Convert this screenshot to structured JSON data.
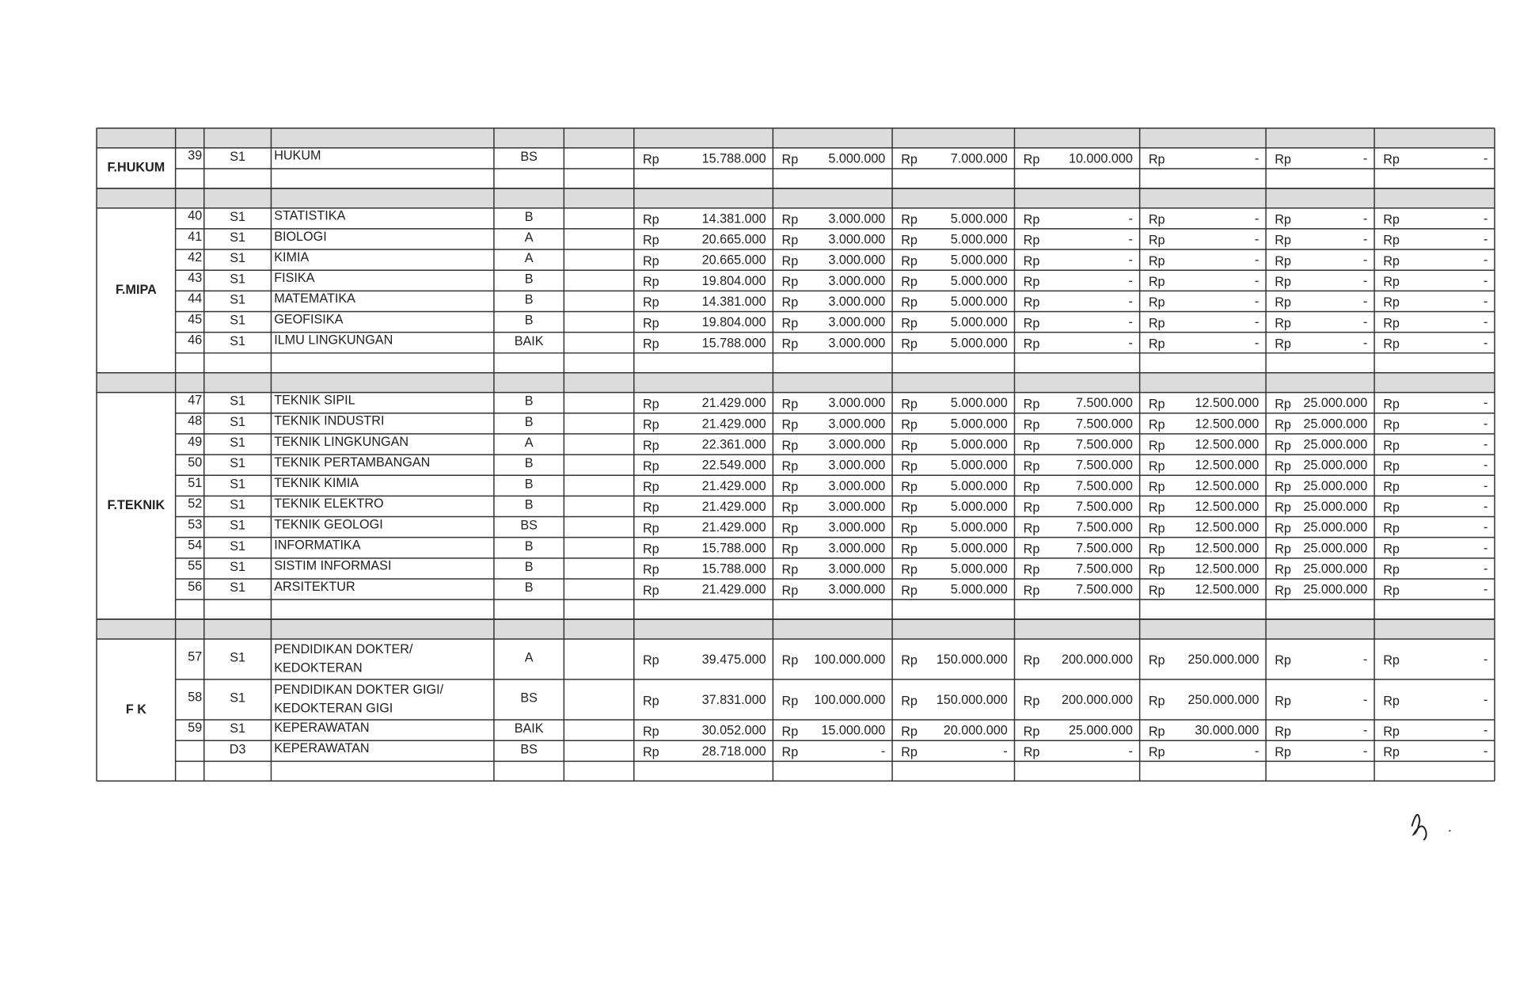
{
  "currency": "Rp",
  "sections": [
    {
      "faculty": "F.HUKUM",
      "rows": [
        {
          "no": "39",
          "level": "S1",
          "program": "HUKUM",
          "accreditation": "BS",
          "fees": [
            "15.788.000",
            "5.000.000",
            "7.000.000",
            "10.000.000",
            "-",
            "-",
            "-"
          ]
        }
      ]
    },
    {
      "faculty": "F.MIPA",
      "rows": [
        {
          "no": "40",
          "level": "S1",
          "program": "STATISTIKA",
          "accreditation": "B",
          "fees": [
            "14.381.000",
            "3.000.000",
            "5.000.000",
            "-",
            "-",
            "-",
            "-"
          ]
        },
        {
          "no": "41",
          "level": "S1",
          "program": "BIOLOGI",
          "accreditation": "A",
          "fees": [
            "20.665.000",
            "3.000.000",
            "5.000.000",
            "-",
            "-",
            "-",
            "-"
          ]
        },
        {
          "no": "42",
          "level": "S1",
          "program": "KIMIA",
          "accreditation": "A",
          "fees": [
            "20.665.000",
            "3.000.000",
            "5.000.000",
            "-",
            "-",
            "-",
            "-"
          ]
        },
        {
          "no": "43",
          "level": "S1",
          "program": "FISIKA",
          "accreditation": "B",
          "fees": [
            "19.804.000",
            "3.000.000",
            "5.000.000",
            "-",
            "-",
            "-",
            "-"
          ]
        },
        {
          "no": "44",
          "level": "S1",
          "program": "MATEMATIKA",
          "accreditation": "B",
          "fees": [
            "14.381.000",
            "3.000.000",
            "5.000.000",
            "-",
            "-",
            "-",
            "-"
          ]
        },
        {
          "no": "45",
          "level": "S1",
          "program": "GEOFISIKA",
          "accreditation": "B",
          "fees": [
            "19.804.000",
            "3.000.000",
            "5.000.000",
            "-",
            "-",
            "-",
            "-"
          ]
        },
        {
          "no": "46",
          "level": "S1",
          "program": "ILMU LINGKUNGAN",
          "accreditation": "BAIK",
          "fees": [
            "15.788.000",
            "3.000.000",
            "5.000.000",
            "-",
            "-",
            "-",
            "-"
          ]
        }
      ]
    },
    {
      "faculty": "F.TEKNIK",
      "rows": [
        {
          "no": "47",
          "level": "S1",
          "program": "TEKNIK SIPIL",
          "accreditation": "B",
          "fees": [
            "21.429.000",
            "3.000.000",
            "5.000.000",
            "7.500.000",
            "12.500.000",
            "25.000.000",
            "-"
          ]
        },
        {
          "no": "48",
          "level": "S1",
          "program": "TEKNIK INDUSTRI",
          "accreditation": "B",
          "fees": [
            "21.429.000",
            "3.000.000",
            "5.000.000",
            "7.500.000",
            "12.500.000",
            "25.000.000",
            "-"
          ]
        },
        {
          "no": "49",
          "level": "S1",
          "program": "TEKNIK LINGKUNGAN",
          "accreditation": "A",
          "fees": [
            "22.361.000",
            "3.000.000",
            "5.000.000",
            "7.500.000",
            "12.500.000",
            "25.000.000",
            "-"
          ]
        },
        {
          "no": "50",
          "level": "S1",
          "program": "TEKNIK PERTAMBANGAN",
          "accreditation": "B",
          "fees": [
            "22.549.000",
            "3.000.000",
            "5.000.000",
            "7.500.000",
            "12.500.000",
            "25.000.000",
            "-"
          ]
        },
        {
          "no": "51",
          "level": "S1",
          "program": "TEKNIK KIMIA",
          "accreditation": "B",
          "fees": [
            "21.429.000",
            "3.000.000",
            "5.000.000",
            "7.500.000",
            "12.500.000",
            "25.000.000",
            "-"
          ]
        },
        {
          "no": "52",
          "level": "S1",
          "program": "TEKNIK ELEKTRO",
          "accreditation": "B",
          "fees": [
            "21.429.000",
            "3.000.000",
            "5.000.000",
            "7.500.000",
            "12.500.000",
            "25.000.000",
            "-"
          ]
        },
        {
          "no": "53",
          "level": "S1",
          "program": "TEKNIK GEOLOGI",
          "accreditation": "BS",
          "fees": [
            "21.429.000",
            "3.000.000",
            "5.000.000",
            "7.500.000",
            "12.500.000",
            "25.000.000",
            "-"
          ]
        },
        {
          "no": "54",
          "level": "S1",
          "program": "INFORMATIKA",
          "accreditation": "B",
          "fees": [
            "15.788.000",
            "3.000.000",
            "5.000.000",
            "7.500.000",
            "12.500.000",
            "25.000.000",
            "-"
          ]
        },
        {
          "no": "55",
          "level": "S1",
          "program": "SISTIM INFORMASI",
          "accreditation": "B",
          "fees": [
            "15.788.000",
            "3.000.000",
            "5.000.000",
            "7.500.000",
            "12.500.000",
            "25.000.000",
            "-"
          ]
        },
        {
          "no": "56",
          "level": "S1",
          "program": "ARSITEKTUR",
          "accreditation": "B",
          "fees": [
            "21.429.000",
            "3.000.000",
            "5.000.000",
            "7.500.000",
            "12.500.000",
            "25.000.000",
            "-"
          ]
        }
      ]
    },
    {
      "faculty": "F K",
      "rows": [
        {
          "no": "57",
          "level": "S1",
          "program": [
            "PENDIDIKAN DOKTER/",
            "KEDOKTERAN"
          ],
          "accreditation": "A",
          "fees": [
            "39.475.000",
            "100.000.000",
            "150.000.000",
            "200.000.000",
            "250.000.000",
            "-",
            "-"
          ]
        },
        {
          "no": "58",
          "level": "S1",
          "program": [
            "PENDIDIKAN DOKTER GIGI/",
            "KEDOKTERAN GIGI"
          ],
          "accreditation": "BS",
          "fees": [
            "37.831.000",
            "100.000.000",
            "150.000.000",
            "200.000.000",
            "250.000.000",
            "-",
            "-"
          ]
        },
        {
          "no": "59",
          "level": "S1",
          "program": "KEPERAWATAN",
          "accreditation": "BAIK",
          "fees": [
            "30.052.000",
            "15.000.000",
            "20.000.000",
            "25.000.000",
            "30.000.000",
            "-",
            "-"
          ]
        },
        {
          "level": "D3",
          "program": "KEPERAWATAN",
          "accreditation": "BS",
          "fees": [
            "28.718.000",
            "-",
            "-",
            "-",
            "-",
            "-",
            "-"
          ]
        }
      ]
    }
  ]
}
